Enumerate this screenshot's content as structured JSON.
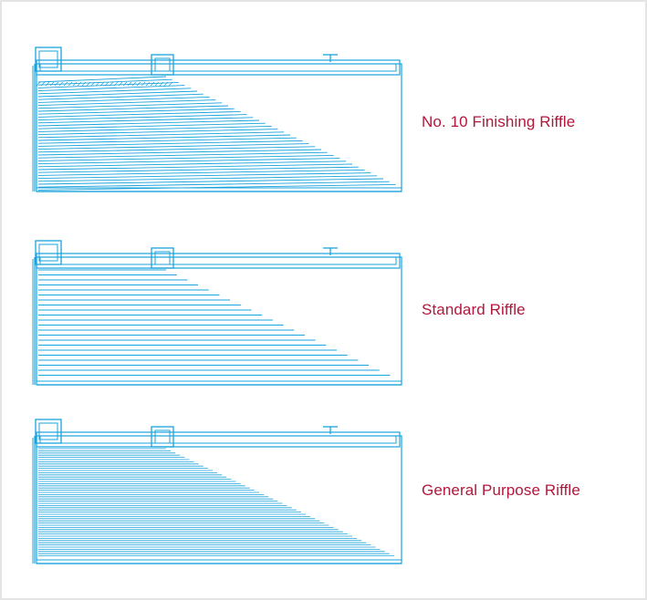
{
  "diagrams": [
    {
      "label": "No. 10 Finishing Riffle",
      "riffle_style": "diagonal"
    },
    {
      "label": "Standard Riffle",
      "riffle_style": "horizontal"
    },
    {
      "label": "General Purpose Riffle",
      "riffle_style": "dense"
    }
  ],
  "colors": {
    "line": "#1aa3dc",
    "label": "#b3173b",
    "border": "#e4e4e4"
  }
}
